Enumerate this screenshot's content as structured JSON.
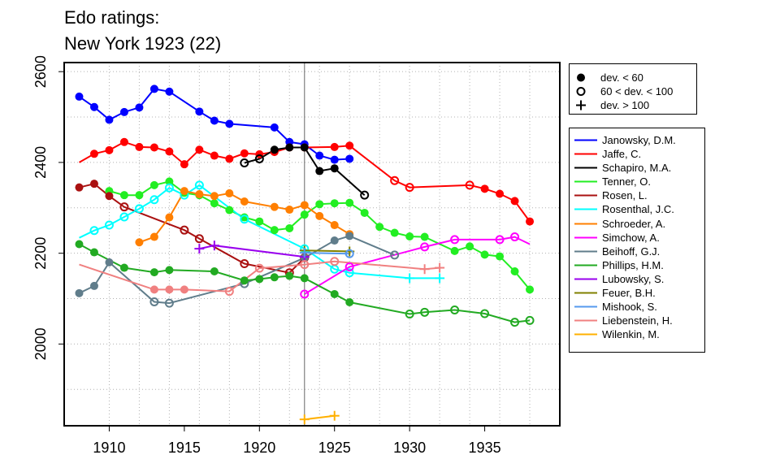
{
  "title": {
    "line1": "Edo ratings:",
    "line2": "New York 1923 (22)"
  },
  "marker_legend": [
    {
      "marker": "filled",
      "label": "dev. < 60"
    },
    {
      "marker": "open",
      "label": "60 < dev. < 100"
    },
    {
      "marker": "plus",
      "label": "dev. > 100"
    }
  ],
  "chart_data": {
    "type": "line",
    "title": "Edo ratings: New York 1923 (22)",
    "xlabel": "",
    "ylabel": "",
    "xlim": [
      1907,
      1940
    ],
    "ylim": [
      1820,
      2620
    ],
    "x_ticks": [
      1910,
      1915,
      1920,
      1925,
      1930,
      1935
    ],
    "x_tick_labels": [
      "1910",
      "1915",
      "1920",
      "1925",
      "1930",
      "1935"
    ],
    "y_ticks": [
      2000,
      2200,
      2400,
      2600
    ],
    "y_tick_labels": [
      "2000",
      "2200",
      "2400",
      "2600"
    ],
    "grid": true,
    "vline_x": 1923,
    "legend_position": "right",
    "series": [
      {
        "name": "Janowsky, D.M.",
        "color": "#0000ff",
        "points": [
          [
            1908,
            2545,
            "f"
          ],
          [
            1909,
            2522,
            "f"
          ],
          [
            1910,
            2494,
            "f"
          ],
          [
            1911,
            2511,
            "f"
          ],
          [
            1912,
            2521,
            "f"
          ],
          [
            1913,
            2562,
            "f"
          ],
          [
            1914,
            2556,
            "f"
          ],
          [
            1916,
            2512,
            "f"
          ],
          [
            1917,
            2492,
            "f"
          ],
          [
            1918,
            2485,
            "f"
          ],
          [
            1921,
            2477,
            "f"
          ],
          [
            1922,
            2445,
            "f"
          ],
          [
            1923,
            2440,
            "f"
          ],
          [
            1924,
            2415,
            "f"
          ],
          [
            1925,
            2406,
            "f"
          ],
          [
            1926,
            2408,
            "f"
          ]
        ]
      },
      {
        "name": "Jaffe, C.",
        "color": "#ff0000",
        "points": [
          [
            1908,
            2400,
            "n"
          ],
          [
            1909,
            2419,
            "f"
          ],
          [
            1910,
            2427,
            "f"
          ],
          [
            1911,
            2445,
            "f"
          ],
          [
            1912,
            2434,
            "f"
          ],
          [
            1913,
            2433,
            "f"
          ],
          [
            1914,
            2424,
            "f"
          ],
          [
            1915,
            2396,
            "f"
          ],
          [
            1916,
            2428,
            "f"
          ],
          [
            1917,
            2415,
            "f"
          ],
          [
            1918,
            2408,
            "f"
          ],
          [
            1919,
            2420,
            "f"
          ],
          [
            1920,
            2418,
            "f"
          ],
          [
            1921,
            2423,
            "f"
          ],
          [
            1922,
            2433,
            "f"
          ],
          [
            1923,
            2433,
            "f"
          ],
          [
            1925,
            2434,
            "f"
          ],
          [
            1926,
            2437,
            "f"
          ],
          [
            1929,
            2360,
            "o"
          ],
          [
            1930,
            2345,
            "o"
          ],
          [
            1934,
            2350,
            "o"
          ],
          [
            1935,
            2342,
            "f"
          ],
          [
            1936,
            2331,
            "f"
          ],
          [
            1937,
            2315,
            "f"
          ],
          [
            1938,
            2270,
            "f"
          ]
        ]
      },
      {
        "name": "Schapiro, M.A.",
        "color": "#000000",
        "points": [
          [
            1919,
            2399,
            "o"
          ],
          [
            1920,
            2408,
            "o"
          ],
          [
            1921,
            2428,
            "f"
          ],
          [
            1922,
            2433,
            "f"
          ],
          [
            1923,
            2433,
            "f"
          ],
          [
            1924,
            2381,
            "f"
          ],
          [
            1925,
            2387,
            "f"
          ],
          [
            1927,
            2328,
            "o"
          ]
        ]
      },
      {
        "name": "Tenner, O.",
        "color": "#22ee22",
        "points": [
          [
            1910,
            2337,
            "f"
          ],
          [
            1911,
            2328,
            "f"
          ],
          [
            1912,
            2328,
            "f"
          ],
          [
            1913,
            2350,
            "f"
          ],
          [
            1914,
            2358,
            "f"
          ],
          [
            1915,
            2333,
            "f"
          ],
          [
            1916,
            2328,
            "f"
          ],
          [
            1917,
            2310,
            "f"
          ],
          [
            1918,
            2295,
            "f"
          ],
          [
            1919,
            2279,
            "f"
          ],
          [
            1920,
            2270,
            "f"
          ],
          [
            1921,
            2251,
            "f"
          ],
          [
            1922,
            2255,
            "f"
          ],
          [
            1923,
            2285,
            "f"
          ],
          [
            1924,
            2308,
            "f"
          ],
          [
            1925,
            2310,
            "f"
          ],
          [
            1926,
            2311,
            "f"
          ],
          [
            1927,
            2289,
            "f"
          ],
          [
            1928,
            2258,
            "f"
          ],
          [
            1929,
            2245,
            "f"
          ],
          [
            1930,
            2237,
            "f"
          ],
          [
            1931,
            2236,
            "f"
          ],
          [
            1933,
            2205,
            "f"
          ],
          [
            1934,
            2215,
            "f"
          ],
          [
            1935,
            2197,
            "f"
          ],
          [
            1936,
            2193,
            "f"
          ],
          [
            1937,
            2160,
            "f"
          ],
          [
            1938,
            2120,
            "f"
          ]
        ]
      },
      {
        "name": "Rosen, L.",
        "color": "#aa1111",
        "points": [
          [
            1908,
            2345,
            "f"
          ],
          [
            1909,
            2353,
            "f"
          ],
          [
            1910,
            2326,
            "f"
          ],
          [
            1911,
            2302,
            "o"
          ],
          [
            1915,
            2251,
            "o"
          ],
          [
            1916,
            2232,
            "o"
          ],
          [
            1919,
            2177,
            "o"
          ],
          [
            1922,
            2157,
            "o"
          ],
          [
            1923,
            2190,
            "o"
          ]
        ]
      },
      {
        "name": "Rosenthal, J.C.",
        "color": "#00ffff",
        "points": [
          [
            1908,
            2234,
            "n"
          ],
          [
            1909,
            2250,
            "o"
          ],
          [
            1910,
            2262,
            "o"
          ],
          [
            1911,
            2280,
            "o"
          ],
          [
            1912,
            2298,
            "o"
          ],
          [
            1913,
            2318,
            "o"
          ],
          [
            1914,
            2344,
            "o"
          ],
          [
            1915,
            2328,
            "o"
          ],
          [
            1916,
            2350,
            "o"
          ],
          [
            1919,
            2275,
            "o"
          ],
          [
            1923,
            2210,
            "o"
          ],
          [
            1925,
            2165,
            "o"
          ],
          [
            1926,
            2157,
            "o"
          ],
          [
            1930,
            2145,
            "p"
          ],
          [
            1932,
            2145,
            "p"
          ]
        ]
      },
      {
        "name": "Schroeder, A.",
        "color": "#ff7f00",
        "points": [
          [
            1912,
            2224,
            "f"
          ],
          [
            1913,
            2236,
            "f"
          ],
          [
            1914,
            2279,
            "f"
          ],
          [
            1915,
            2337,
            "f"
          ],
          [
            1916,
            2330,
            "f"
          ],
          [
            1917,
            2326,
            "f"
          ],
          [
            1918,
            2332,
            "f"
          ],
          [
            1919,
            2314,
            "f"
          ],
          [
            1921,
            2302,
            "f"
          ],
          [
            1922,
            2296,
            "f"
          ],
          [
            1923,
            2306,
            "f"
          ],
          [
            1924,
            2282,
            "f"
          ],
          [
            1925,
            2262,
            "f"
          ],
          [
            1926,
            2242,
            "f"
          ]
        ]
      },
      {
        "name": "Simchow, A.",
        "color": "#ff00ff",
        "points": [
          [
            1923,
            2110,
            "o"
          ],
          [
            1926,
            2170,
            "o"
          ],
          [
            1931,
            2214,
            "o"
          ],
          [
            1933,
            2230,
            "o"
          ],
          [
            1936,
            2230,
            "o"
          ],
          [
            1937,
            2236,
            "o"
          ],
          [
            1938,
            2220,
            "n"
          ]
        ]
      },
      {
        "name": "Beihoff, G.J.",
        "color": "#607d8b",
        "points": [
          [
            1908,
            2112,
            "f"
          ],
          [
            1909,
            2128,
            "f"
          ],
          [
            1910,
            2180,
            "f"
          ],
          [
            1913,
            2093,
            "o"
          ],
          [
            1914,
            2090,
            "o"
          ],
          [
            1919,
            2133,
            "o"
          ],
          [
            1923,
            2190,
            "f"
          ],
          [
            1925,
            2228,
            "f"
          ],
          [
            1926,
            2238,
            "f"
          ],
          [
            1929,
            2196,
            "o"
          ]
        ]
      },
      {
        "name": "Phillips, H.M.",
        "color": "#22aa22",
        "points": [
          [
            1908,
            2220,
            "f"
          ],
          [
            1909,
            2202,
            "f"
          ],
          [
            1911,
            2168,
            "f"
          ],
          [
            1913,
            2158,
            "f"
          ],
          [
            1914,
            2163,
            "f"
          ],
          [
            1917,
            2160,
            "f"
          ],
          [
            1919,
            2140,
            "f"
          ],
          [
            1920,
            2143,
            "f"
          ],
          [
            1921,
            2147,
            "f"
          ],
          [
            1922,
            2150,
            "f"
          ],
          [
            1923,
            2145,
            "f"
          ],
          [
            1925,
            2110,
            "f"
          ],
          [
            1926,
            2092,
            "f"
          ],
          [
            1930,
            2066,
            "o"
          ],
          [
            1931,
            2070,
            "o"
          ],
          [
            1933,
            2075,
            "o"
          ],
          [
            1935,
            2067,
            "o"
          ],
          [
            1937,
            2048,
            "o"
          ],
          [
            1938,
            2052,
            "o"
          ]
        ]
      },
      {
        "name": "Lubowsky, S.",
        "color": "#9900ee",
        "points": [
          [
            1916,
            2210,
            "p"
          ],
          [
            1917,
            2217,
            "p"
          ],
          [
            1923,
            2192,
            "p"
          ]
        ]
      },
      {
        "name": "Feuer, B.H.",
        "color": "#808000",
        "points": [
          [
            1923,
            2206,
            "p"
          ],
          [
            1926,
            2204,
            "p"
          ]
        ]
      },
      {
        "name": "Mishook, S.",
        "color": "#5599ee",
        "points": [
          [
            1923,
            2201,
            "p"
          ],
          [
            1926,
            2199,
            "o"
          ]
        ]
      },
      {
        "name": "Liebenstein, H.",
        "color": "#f08080",
        "points": [
          [
            1908,
            2175,
            "n"
          ],
          [
            1913,
            2120,
            "f"
          ],
          [
            1914,
            2120,
            "f"
          ],
          [
            1915,
            2120,
            "f"
          ],
          [
            1918,
            2116,
            "o"
          ],
          [
            1920,
            2167,
            "o"
          ],
          [
            1923,
            2175,
            "o"
          ],
          [
            1925,
            2182,
            "o"
          ],
          [
            1931,
            2165,
            "p"
          ],
          [
            1932,
            2168,
            "p"
          ]
        ]
      },
      {
        "name": "Wilenkin, M.",
        "color": "#ffb000",
        "points": [
          [
            1923,
            1834,
            "p"
          ],
          [
            1925,
            1842,
            "p"
          ]
        ]
      }
    ]
  }
}
